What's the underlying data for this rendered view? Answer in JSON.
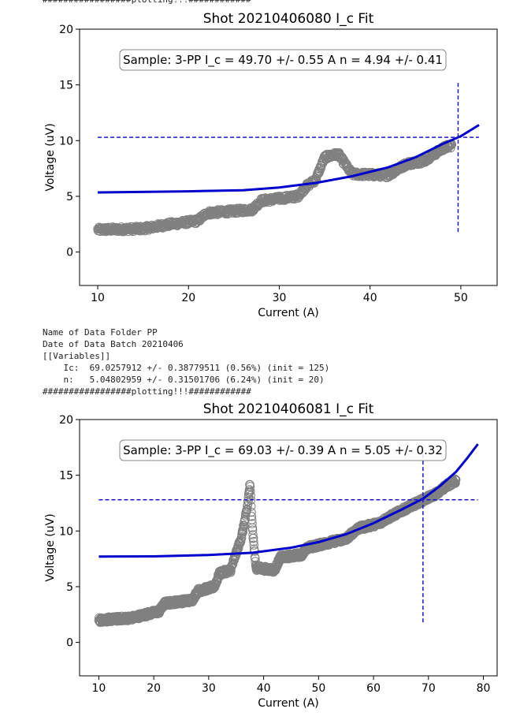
{
  "log_top": [
    "#################plotting!!!############"
  ],
  "log_mid": [
    "Name of Data Folder PP",
    "Date of Data Batch 20210406",
    "[[Variables]]",
    "    Ic:  69.0257912 +/- 0.38779511 (0.56%) (init = 125)",
    "    n:   5.04802959 +/- 0.31501706 (6.24%) (init = 20)",
    "#################plotting!!!############"
  ],
  "chart_data": [
    {
      "type": "scatter",
      "title": "Shot 20210406080 I_c Fit",
      "xlabel": "Current (A)",
      "ylabel": "Voltage (uV)",
      "xlim": [
        8,
        54
      ],
      "ylim": [
        -3,
        20
      ],
      "xticks": [
        10,
        20,
        30,
        40,
        50
      ],
      "yticks": [
        0,
        5,
        10,
        15,
        20
      ],
      "annotation": "Sample: 3-PP  I_c = 49.70 +/- 0.55 A n = 4.94 +/- 0.41",
      "data_range": [
        10,
        49
      ],
      "data_profile": [
        [
          10,
          2.0
        ],
        [
          15,
          2.1
        ],
        [
          18,
          2.5
        ],
        [
          21,
          2.8
        ],
        [
          22,
          3.5
        ],
        [
          27,
          3.8
        ],
        [
          28,
          4.6
        ],
        [
          32,
          5.0
        ],
        [
          33,
          5.9
        ],
        [
          34,
          6.5
        ],
        [
          35,
          8.5
        ],
        [
          36.5,
          8.8
        ],
        [
          38,
          7.0
        ],
        [
          42,
          6.9
        ],
        [
          44,
          7.9
        ],
        [
          46,
          8.2
        ],
        [
          48,
          9.3
        ],
        [
          49,
          9.6
        ]
      ],
      "fit_curve": [
        [
          10,
          5.35
        ],
        [
          20,
          5.45
        ],
        [
          26,
          5.55
        ],
        [
          30,
          5.8
        ],
        [
          34,
          6.2
        ],
        [
          38,
          6.8
        ],
        [
          42,
          7.6
        ],
        [
          45,
          8.5
        ],
        [
          48,
          9.7
        ],
        [
          50,
          10.4
        ],
        [
          52,
          11.4
        ]
      ],
      "threshold_y": 10.3,
      "threshold_x_range": [
        10,
        52
      ],
      "ic_x": 49.7,
      "ic_y_range": [
        1.8,
        15.3
      ],
      "colors": {
        "points": "#808080",
        "fit": "#0000cc",
        "guide": "#1a1acc"
      }
    },
    {
      "type": "scatter",
      "title": "Shot 20210406081 I_c Fit",
      "xlabel": "Current (A)",
      "ylabel": "Voltage (uV)",
      "xlim": [
        6.5,
        82.5
      ],
      "ylim": [
        -3,
        20
      ],
      "xticks": [
        10,
        20,
        30,
        40,
        50,
        60,
        70,
        80
      ],
      "yticks": [
        0,
        5,
        10,
        15,
        20
      ],
      "annotation": "Sample: 3-PP  I_c = 69.03 +/- 0.39 A n = 5.05 +/- 0.32",
      "data_range": [
        10,
        75
      ],
      "data_profile": [
        [
          10,
          2.0
        ],
        [
          16,
          2.2
        ],
        [
          21,
          2.8
        ],
        [
          22,
          3.5
        ],
        [
          27,
          3.8
        ],
        [
          28,
          4.6
        ],
        [
          31,
          5.0
        ],
        [
          32,
          6.2
        ],
        [
          34,
          6.5
        ],
        [
          35,
          8.0
        ],
        [
          36,
          9.5
        ],
        [
          37,
          12
        ],
        [
          37.5,
          14.2
        ],
        [
          38,
          10.0
        ],
        [
          38.6,
          6.7
        ],
        [
          42,
          6.5
        ],
        [
          43,
          7.6
        ],
        [
          47,
          7.9
        ],
        [
          48,
          8.5
        ],
        [
          53,
          9.1
        ],
        [
          55,
          9.3
        ],
        [
          57,
          10.2
        ],
        [
          61,
          10.7
        ],
        [
          62,
          11.0
        ],
        [
          65,
          11.8
        ],
        [
          67,
          12.3
        ],
        [
          70,
          13.0
        ],
        [
          72,
          13.5
        ],
        [
          73,
          14.0
        ],
        [
          75,
          14.5
        ]
      ],
      "fit_curve": [
        [
          10,
          7.7
        ],
        [
          20,
          7.72
        ],
        [
          30,
          7.85
        ],
        [
          38,
          8.05
        ],
        [
          45,
          8.5
        ],
        [
          50,
          9.0
        ],
        [
          55,
          9.7
        ],
        [
          60,
          10.7
        ],
        [
          65,
          11.9
        ],
        [
          69,
          12.9
        ],
        [
          72,
          14.0
        ],
        [
          75,
          15.3
        ],
        [
          77,
          16.5
        ],
        [
          79,
          17.8
        ]
      ],
      "threshold_y": 12.8,
      "threshold_x_range": [
        10,
        79
      ],
      "ic_x": 69.0,
      "ic_y_range": [
        1.8,
        17.2
      ],
      "colors": {
        "points": "#808080",
        "fit": "#0000cc",
        "guide": "#1a1acc"
      }
    }
  ]
}
